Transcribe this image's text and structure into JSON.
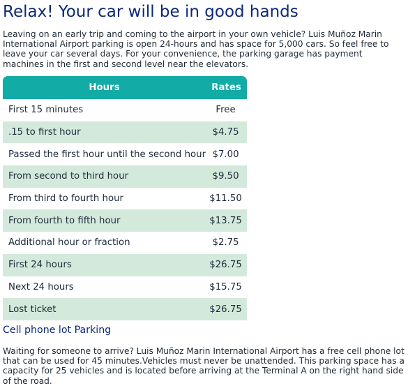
{
  "page": {
    "title": "Relax! Your car will be in good hands",
    "intro": "Leaving on an early trip and coming to the airport in your own vehicle? Luis Muñoz Marin International Airport parking is open 24-hours and has space for 5,000 cars. So feel free to leave your car several days. For your convenience, the parking garage has payment machines in the first and second level near the elevators."
  },
  "table": {
    "headers": {
      "hours": "Hours",
      "rates": "Rates"
    },
    "rows": [
      {
        "period": "First 15 minutes",
        "rate": "Free"
      },
      {
        "period": " .15 to first hour",
        "rate": "$4.75"
      },
      {
        "period": "Passed the first hour until the second hour",
        "rate": "$7.00"
      },
      {
        "period": "From second to third hour",
        "rate": "$9.50"
      },
      {
        "period": "From third to fourth hour",
        "rate": "$11.50"
      },
      {
        "period": "From fourth to fifth hour",
        "rate": "$13.75"
      },
      {
        "period": "Additional hour or fraction",
        "rate": "$2.75"
      },
      {
        "period": "First 24 hours",
        "rate": "$26.75"
      },
      {
        "period": "Next 24 hours",
        "rate": "$15.75"
      },
      {
        "period": "Lost ticket",
        "rate": "$26.75"
      }
    ]
  },
  "cell_phone_lot": {
    "heading": "Cell phone lot Parking",
    "text": "Waiting for someone to arrive? Luis Muñoz Marin International Airport has a free cell phone lot that can be used for 45 minutes.Vehicles must never be unattended. This parking space has a capacity for 25 vehicles and is located before arriving at the Terminal A on the right hand side of the road."
  },
  "colors": {
    "title": "#0d2a78",
    "header_bg": "#13aba5",
    "row_alt_bg": "#d3e9dc",
    "text": "#1e2a3a"
  }
}
